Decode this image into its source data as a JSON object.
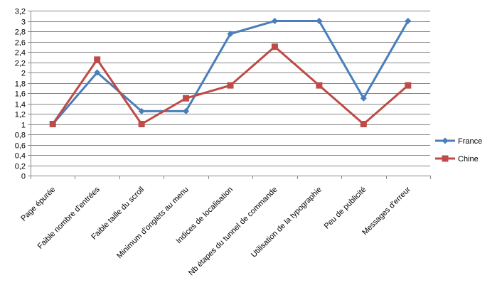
{
  "chart_data": {
    "type": "line",
    "categories": [
      "Page épurée",
      "Faible nombre d'entrées",
      "Faible taille du scroll",
      "Minimum d'onglets au menu",
      "Indices de localisation",
      "Nb étapes du tunnel de commande",
      "Utilisation de la typographie",
      "Peu de publicité",
      "Messages d'erreur"
    ],
    "series": [
      {
        "name": "France",
        "color": "#4a7ebb",
        "marker": "diamond",
        "values": [
          1,
          2,
          1.25,
          1.25,
          2.75,
          3,
          3,
          1.5,
          3
        ]
      },
      {
        "name": "Chine",
        "color": "#be4b48",
        "marker": "square",
        "values": [
          1,
          2.25,
          1,
          1.5,
          1.75,
          2.5,
          1.75,
          1,
          1.75
        ]
      }
    ],
    "ylim": [
      0,
      3.2
    ],
    "ytick_step": 0.2,
    "yticks": [
      "0",
      "0,2",
      "0,4",
      "0,6",
      "0,8",
      "1",
      "1,2",
      "1,4",
      "1,6",
      "1,8",
      "2",
      "2,2",
      "2,4",
      "2,6",
      "2,8",
      "3",
      "3,2"
    ],
    "grid": true,
    "legend_position": "right",
    "title": "",
    "xlabel": "",
    "ylabel": ""
  }
}
